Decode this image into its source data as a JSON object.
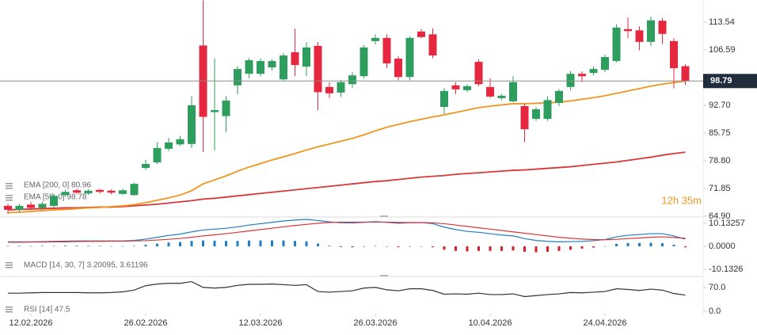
{
  "chart_data": [
    {
      "type": "candlestick",
      "categories": [
        null,
        null,
        null,
        null,
        null,
        null,
        null,
        null,
        null,
        null,
        null,
        null,
        null,
        null,
        null,
        null,
        null,
        null,
        null,
        null,
        null,
        null,
        null,
        null,
        null,
        null,
        null,
        null,
        null,
        null,
        null,
        null,
        null,
        null,
        null,
        null,
        null,
        null,
        null,
        null,
        null,
        null,
        null,
        null,
        null,
        null,
        null,
        null,
        null,
        null,
        null,
        null,
        null,
        null,
        null,
        null,
        null,
        null,
        null,
        null
      ],
      "open": [
        67.5,
        66.5,
        67.8,
        67,
        67.5,
        70.2,
        71.4,
        70.6,
        71.5,
        71.3,
        70.5,
        70.2,
        77,
        78.4,
        81.8,
        82.9,
        83,
        107.7,
        91,
        90,
        97.7,
        100.6,
        100.6,
        102.2,
        99.2,
        106,
        102.4,
        107.6,
        97.3,
        95.9,
        98,
        100,
        108.8,
        109.6,
        104.4,
        99.8,
        111.2,
        110.5,
        92.3,
        97.7,
        96.5,
        103.6,
        97.3,
        94.5,
        93.7,
        92.5,
        89.3,
        89.3,
        93.3,
        97.3,
        100.6,
        100.8,
        101.6,
        103.8,
        111.8,
        111.5,
        108.6,
        113.9,
        108.8,
        102.5
      ],
      "high": [
        68,
        68,
        68.5,
        68.5,
        70.5,
        71.5,
        71.8,
        71.7,
        71.8,
        71.6,
        71.8,
        73.3,
        79,
        83.5,
        84.5,
        85,
        95,
        119,
        104.5,
        95,
        102.5,
        104.5,
        104.5,
        104.3,
        105.8,
        111.9,
        108.5,
        108.6,
        98.5,
        99,
        101,
        107.8,
        110.5,
        110.5,
        105,
        110,
        111.8,
        112,
        97,
        98.5,
        98,
        104.2,
        99.5,
        95.5,
        100,
        93,
        92.3,
        95,
        96.8,
        101.3,
        101.2,
        102.4,
        105.4,
        113,
        114.7,
        112.5,
        114.9,
        114.5,
        109.5,
        103
      ],
      "low": [
        65.5,
        66,
        66.5,
        66.5,
        67,
        69.8,
        70.5,
        70.2,
        70.6,
        70.4,
        70.2,
        70,
        76.5,
        78,
        81.2,
        82.5,
        82,
        81,
        81.4,
        86,
        95.5,
        99.5,
        100,
        101.5,
        98.8,
        100,
        100,
        91.5,
        94.5,
        94.8,
        97,
        99.5,
        108,
        102,
        99,
        99,
        109.5,
        104.5,
        90.5,
        95.5,
        96,
        97.5,
        94.5,
        94,
        93.5,
        83.5,
        88.8,
        88.8,
        92.5,
        96.5,
        98.5,
        100.2,
        101,
        103.5,
        109.5,
        106.5,
        107.5,
        108,
        97,
        97.8
      ],
      "close": [
        66.5,
        67.5,
        67,
        68,
        70,
        71,
        70.8,
        71.3,
        71,
        70.8,
        71.4,
        73,
        78,
        82,
        83.4,
        84.2,
        92.7,
        89.8,
        91.5,
        93.9,
        101.8,
        104,
        103.8,
        103.8,
        105.2,
        102.8,
        107.2,
        96,
        95.7,
        98.5,
        100.2,
        107.2,
        109.6,
        103.2,
        99.8,
        109.6,
        109.8,
        105.2,
        96.3,
        96.7,
        97.5,
        98,
        94.9,
        95.1,
        98.5,
        86.7,
        91.7,
        94,
        96.3,
        100.6,
        100,
        101.8,
        104.8,
        112.2,
        111.3,
        108.6,
        114,
        110.6,
        102,
        98.79
      ],
      "up_color": "#2e9e5e",
      "down_color": "#e5283f",
      "overlays": [
        {
          "name": "EMA [200, 0] 80.96",
          "color": "#d8383a",
          "values": [
            66.5,
            66.6,
            66.7,
            66.8,
            66.9,
            67.0,
            67.0,
            67.1,
            67.2,
            67.2,
            67.3,
            67.5,
            67.7,
            67.9,
            68.2,
            68.5,
            68.8,
            69.2,
            69.4,
            69.7,
            70.0,
            70.3,
            70.6,
            70.9,
            71.2,
            71.5,
            71.8,
            72.1,
            72.4,
            72.7,
            73.0,
            73.3,
            73.6,
            73.8,
            74.1,
            74.4,
            74.7,
            74.9,
            75.1,
            75.4,
            75.6,
            75.8,
            76.0,
            76.2,
            76.4,
            76.5,
            76.7,
            76.9,
            77.1,
            77.3,
            77.6,
            77.9,
            78.2,
            78.5,
            78.9,
            79.3,
            79.7,
            80.2,
            80.6,
            80.96
          ]
        },
        {
          "name": "EMA [50, 0] 98.78",
          "color": "#f0961e",
          "values": [
            65.8,
            65.9,
            66.1,
            66.3,
            66.5,
            66.6,
            66.8,
            67.0,
            67.1,
            67.3,
            67.5,
            67.8,
            68.3,
            68.9,
            69.5,
            70.2,
            71.3,
            73.0,
            74.0,
            75.0,
            76.2,
            77.2,
            78.1,
            79.0,
            79.8,
            80.6,
            81.5,
            82.3,
            83.0,
            83.7,
            84.4,
            85.3,
            86.3,
            87.2,
            87.9,
            88.6,
            89.2,
            89.8,
            90.3,
            90.9,
            91.5,
            92.1,
            92.5,
            92.8,
            93.1,
            93.1,
            93.2,
            93.3,
            93.5,
            93.8,
            94.2,
            94.6,
            95.1,
            95.7,
            96.3,
            96.9,
            97.5,
            98.0,
            98.4,
            98.78
          ]
        }
      ],
      "ylim": [
        64.9,
        119.1
      ],
      "yticks": [
        113.54,
        106.59,
        {
          "value": 92.7,
          "label": "92.70"
        },
        85.75,
        {
          "value": 78.8,
          "label": "78.80"
        },
        71.85,
        {
          "value": 64.9,
          "label": "64.90"
        }
      ],
      "xticks": [
        {
          "value": 2,
          "label": "12.02.2026"
        },
        {
          "value": 12,
          "label": "26.02.2026"
        },
        {
          "value": 22,
          "label": "12.03.2026"
        },
        {
          "value": 32,
          "label": "26.03.2026"
        },
        {
          "value": 42,
          "label": "10.04.2026"
        },
        {
          "value": 52,
          "label": "24.04.2026"
        }
      ],
      "countdown": "12h 35m"
    },
    {
      "type": "macd",
      "legend": "MACD [14, 30, 7] 3.20095, 3.61196",
      "series": [
        {
          "color": "#1f7fc4",
          "values": [
            2.0,
            2.0,
            2.0,
            2.1,
            2.2,
            2.3,
            2.4,
            2.4,
            2.4,
            2.4,
            2.4,
            2.6,
            3.2,
            4.0,
            4.8,
            5.4,
            6.4,
            7.2,
            7.6,
            8.0,
            8.6,
            9.4,
            10.0,
            10.6,
            11.2,
            11.6,
            11.9,
            11.4,
            10.8,
            10.4,
            10.3,
            10.6,
            10.9,
            10.6,
            10.2,
            10.4,
            10.5,
            10.0,
            8.5,
            7.4,
            6.6,
            6.2,
            5.6,
            5.0,
            4.6,
            3.4,
            2.6,
            2.2,
            2.0,
            2.1,
            2.2,
            2.5,
            3.0,
            4.2,
            4.9,
            5.2,
            5.6,
            5.6,
            4.6,
            3.20095
          ]
        },
        {
          "color": "#d8383a",
          "values": [
            1.8,
            1.8,
            1.9,
            1.9,
            2.0,
            2.0,
            2.1,
            2.2,
            2.2,
            2.3,
            2.3,
            2.4,
            2.5,
            2.8,
            3.1,
            3.5,
            4.0,
            4.6,
            5.1,
            5.6,
            6.2,
            6.8,
            7.4,
            8.0,
            8.6,
            9.2,
            9.7,
            10.2,
            10.5,
            10.7,
            10.7,
            10.7,
            10.7,
            10.7,
            10.6,
            10.5,
            10.5,
            10.4,
            10.0,
            9.4,
            8.8,
            8.2,
            7.6,
            7.0,
            6.4,
            5.8,
            5.2,
            4.6,
            4.0,
            3.6,
            3.2,
            3.0,
            2.9,
            3.1,
            3.4,
            3.7,
            4.0,
            4.2,
            3.9,
            3.61196
          ]
        }
      ],
      "histogram": {
        "up_color": "#1f7fc4",
        "down_color": "#d41e2a",
        "values": [
          0.2,
          0.2,
          0.1,
          0.2,
          0.2,
          0.3,
          0.3,
          0.2,
          0.2,
          0.1,
          0.1,
          0.2,
          0.7,
          1.2,
          1.7,
          1.9,
          2.4,
          2.6,
          2.5,
          2.4,
          2.4,
          2.6,
          2.6,
          2.6,
          2.6,
          2.4,
          2.2,
          1.2,
          0.3,
          -0.3,
          -0.4,
          -0.1,
          0.2,
          -0.1,
          -0.4,
          -0.1,
          0,
          -0.4,
          -1.5,
          -2.0,
          -2.2,
          -2.0,
          -2.0,
          -2.0,
          -1.8,
          -2.4,
          -2.6,
          -2.4,
          -2.0,
          -1.5,
          -1.0,
          -0.5,
          0.1,
          1.1,
          1.5,
          1.5,
          1.6,
          1.4,
          0.7,
          -0.41101
        ]
      },
      "ylim": [
        -12.9,
        12.6
      ],
      "yticks": [
        10.13257,
        {
          "value": 0,
          "label": "0.0000"
        },
        -10.1326
      ]
    },
    {
      "type": "line",
      "legend": "RSI [14] 47.5",
      "color": "#333333",
      "values": [
        53,
        53,
        54,
        55,
        55,
        55,
        55,
        54,
        54,
        55,
        57,
        62,
        75,
        80,
        82,
        82,
        87,
        70,
        68,
        70,
        76,
        79,
        79,
        80,
        78,
        76,
        78,
        58,
        56,
        58,
        60,
        68,
        70,
        63,
        60,
        66,
        66,
        61,
        50,
        51,
        50,
        53,
        49,
        49,
        51,
        43,
        46,
        49,
        51,
        55,
        54,
        56,
        58,
        66,
        64,
        61,
        65,
        62,
        52,
        47.5
      ],
      "ylim": [
        0,
        100
      ],
      "yticks": [
        {
          "value": 70,
          "label": "70.0"
        },
        {
          "value": 0,
          "label": "0.0"
        }
      ]
    }
  ]
}
